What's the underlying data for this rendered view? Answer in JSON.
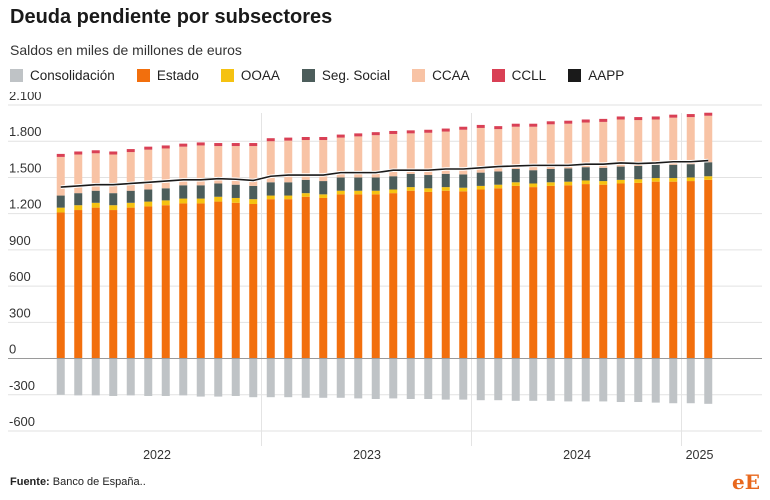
{
  "header": {
    "title": "Deuda pendiente por subsectores",
    "subtitle": "Saldos en miles de millones de euros"
  },
  "legend": [
    {
      "name": "Consolidación",
      "color": "#bfc3c6"
    },
    {
      "name": "Estado",
      "color": "#f26f0d"
    },
    {
      "name": "OOAA",
      "color": "#f5c211"
    },
    {
      "name": "Seg. Social",
      "color": "#4c5d5b"
    },
    {
      "name": "CCAA",
      "color": "#f8c3a5"
    },
    {
      "name": "CCLL",
      "color": "#d94055"
    },
    {
      "name": "AAPP",
      "color": "#1a1a1a"
    }
  ],
  "footer": {
    "source_label": "Fuente:",
    "source_text": "Banco de España..",
    "brand_e": "e",
    "brand_E": "E"
  },
  "chart_data": {
    "type": "bar",
    "stacked": true,
    "title": "Deuda pendiente por subsectores",
    "subtitle": "Saldos en miles de millones de euros",
    "ylim": [
      -600,
      2100
    ],
    "yticks": [
      -600,
      -300,
      0,
      300,
      600,
      900,
      1200,
      1500,
      1800,
      2100
    ],
    "ytick_labels": [
      "-600",
      "-300",
      "0",
      "300",
      "600",
      "900",
      "1.200",
      "1.500",
      "1.800",
      "2.100"
    ],
    "grid": true,
    "legend_position": "top",
    "x_year_labels": [
      "2022",
      "2023",
      "2024",
      "2025"
    ],
    "year_start_index": [
      0,
      12,
      24,
      36
    ],
    "months": [
      "2022-01",
      "2022-02",
      "2022-03",
      "2022-04",
      "2022-05",
      "2022-06",
      "2022-07",
      "2022-08",
      "2022-09",
      "2022-10",
      "2022-11",
      "2022-12",
      "2023-01",
      "2023-02",
      "2023-03",
      "2023-04",
      "2023-05",
      "2023-06",
      "2023-07",
      "2023-08",
      "2023-09",
      "2023-10",
      "2023-11",
      "2023-12",
      "2024-01",
      "2024-02",
      "2024-03",
      "2024-04",
      "2024-05",
      "2024-06",
      "2024-07",
      "2024-08",
      "2024-09",
      "2024-10",
      "2024-11",
      "2024-12",
      "2025-01",
      "2025-02"
    ],
    "series": [
      {
        "name": "Consolidación",
        "color": "#bfc3c6",
        "values": [
          -300,
          -305,
          -305,
          -310,
          -305,
          -310,
          -310,
          -305,
          -315,
          -315,
          -310,
          -320,
          -320,
          -320,
          -325,
          -325,
          -325,
          -330,
          -335,
          -330,
          -335,
          -335,
          -340,
          -340,
          -345,
          -345,
          -350,
          -350,
          -350,
          -355,
          -355,
          -355,
          -360,
          -360,
          -365,
          -370,
          -370,
          -375
        ]
      },
      {
        "name": "Estado",
        "color": "#f26f0d",
        "values": [
          1210,
          1230,
          1250,
          1230,
          1250,
          1260,
          1270,
          1285,
          1285,
          1300,
          1290,
          1280,
          1320,
          1320,
          1340,
          1330,
          1360,
          1360,
          1360,
          1370,
          1390,
          1380,
          1390,
          1385,
          1400,
          1410,
          1430,
          1420,
          1430,
          1435,
          1445,
          1440,
          1450,
          1455,
          1465,
          1465,
          1470,
          1480
        ]
      },
      {
        "name": "OOAA",
        "color": "#f5c211",
        "values": [
          40,
          40,
          40,
          40,
          40,
          40,
          40,
          40,
          40,
          40,
          40,
          40,
          30,
          30,
          30,
          30,
          30,
          30,
          30,
          30,
          30,
          30,
          30,
          30,
          30,
          30,
          30,
          30,
          30,
          30,
          30,
          30,
          30,
          30,
          30,
          30,
          30,
          30
        ]
      },
      {
        "name": "Seg. Social",
        "color": "#4c5d5b",
        "values": [
          100,
          100,
          100,
          100,
          100,
          100,
          100,
          110,
          110,
          110,
          110,
          110,
          110,
          110,
          110,
          110,
          110,
          110,
          110,
          110,
          110,
          110,
          110,
          110,
          110,
          110,
          110,
          110,
          110,
          110,
          110,
          110,
          110,
          110,
          110,
          110,
          110,
          116
        ]
      },
      {
        "name": "CCAA",
        "color": "#f8c3a5",
        "values": [
          320,
          320,
          310,
          320,
          320,
          330,
          330,
          320,
          330,
          310,
          320,
          330,
          340,
          345,
          330,
          340,
          330,
          340,
          350,
          350,
          335,
          350,
          350,
          370,
          370,
          350,
          350,
          360,
          370,
          370,
          370,
          380,
          390,
          380,
          375,
          390,
          390,
          385
        ]
      },
      {
        "name": "CCLL",
        "color": "#d94055",
        "values": [
          25,
          25,
          25,
          25,
          25,
          25,
          25,
          25,
          25,
          25,
          25,
          25,
          25,
          25,
          25,
          25,
          25,
          25,
          25,
          25,
          25,
          25,
          25,
          25,
          25,
          25,
          25,
          25,
          25,
          25,
          25,
          25,
          25,
          25,
          25,
          25,
          25,
          25
        ]
      },
      {
        "name": "AAPP",
        "color": "#1a1a1a",
        "type": "line",
        "values": [
          1420,
          1430,
          1440,
          1440,
          1450,
          1460,
          1470,
          1480,
          1480,
          1490,
          1485,
          1475,
          1510,
          1520,
          1520,
          1520,
          1540,
          1540,
          1540,
          1560,
          1560,
          1560,
          1570,
          1570,
          1580,
          1590,
          1595,
          1600,
          1600,
          1600,
          1610,
          1610,
          1620,
          1615,
          1620,
          1630,
          1630,
          1640
        ]
      }
    ]
  }
}
